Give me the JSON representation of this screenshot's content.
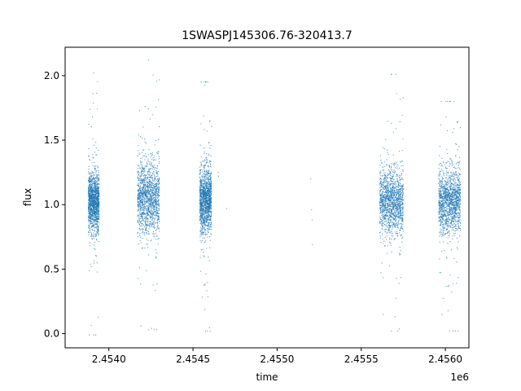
{
  "chart_data": {
    "type": "scatter",
    "title": "1SWASPJ145306.76-320413.7",
    "xlabel": "time",
    "ylabel": "flux",
    "x_offset_label": "1e6",
    "xlim": [
      2453740,
      2456140
    ],
    "ylim": [
      -0.11,
      2.22
    ],
    "x_ticks": [
      2454000,
      2454500,
      2455000,
      2455500,
      2456000
    ],
    "x_tick_labels": [
      "2.4540",
      "2.4545",
      "2.4550",
      "2.4555",
      "2.4560"
    ],
    "y_ticks": [
      0.0,
      0.5,
      1.0,
      1.5,
      2.0
    ],
    "y_tick_labels": [
      "0.0",
      "0.5",
      "1.0",
      "1.5",
      "2.0"
    ],
    "grid": false,
    "point_color": "#1f77b4",
    "series": [
      {
        "clusters": [
          {
            "x_range": [
              2453878,
              2453942
            ],
            "y_center": 1.02,
            "y_spread": 0.2,
            "y_min": -0.01,
            "y_max": 2.02
          },
          {
            "x_range": [
              2454170,
              2454300
            ],
            "y_center": 1.05,
            "y_spread": 0.25,
            "y_min": 0.03,
            "y_max": 2.12
          },
          {
            "x_range": [
              2454540,
              2454610
            ],
            "y_center": 1.03,
            "y_spread": 0.22,
            "y_min": 0.02,
            "y_max": 1.95
          },
          {
            "x_range": [
              2455610,
              2455750
            ],
            "y_center": 1.02,
            "y_spread": 0.22,
            "y_min": 0.02,
            "y_max": 2.01
          },
          {
            "x_range": [
              2455960,
              2456090
            ],
            "y_center": 1.02,
            "y_spread": 0.22,
            "y_min": 0.02,
            "y_max": 1.8
          }
        ],
        "isolated_points": [
          {
            "x": 2454650,
            "y": 1.25
          },
          {
            "x": 2454652,
            "y": 1.22
          },
          {
            "x": 2454700,
            "y": 0.97
          },
          {
            "x": 2455200,
            "y": 1.2
          },
          {
            "x": 2455205,
            "y": 0.96
          },
          {
            "x": 2455208,
            "y": 0.88
          },
          {
            "x": 2455210,
            "y": 0.69
          }
        ]
      }
    ]
  }
}
